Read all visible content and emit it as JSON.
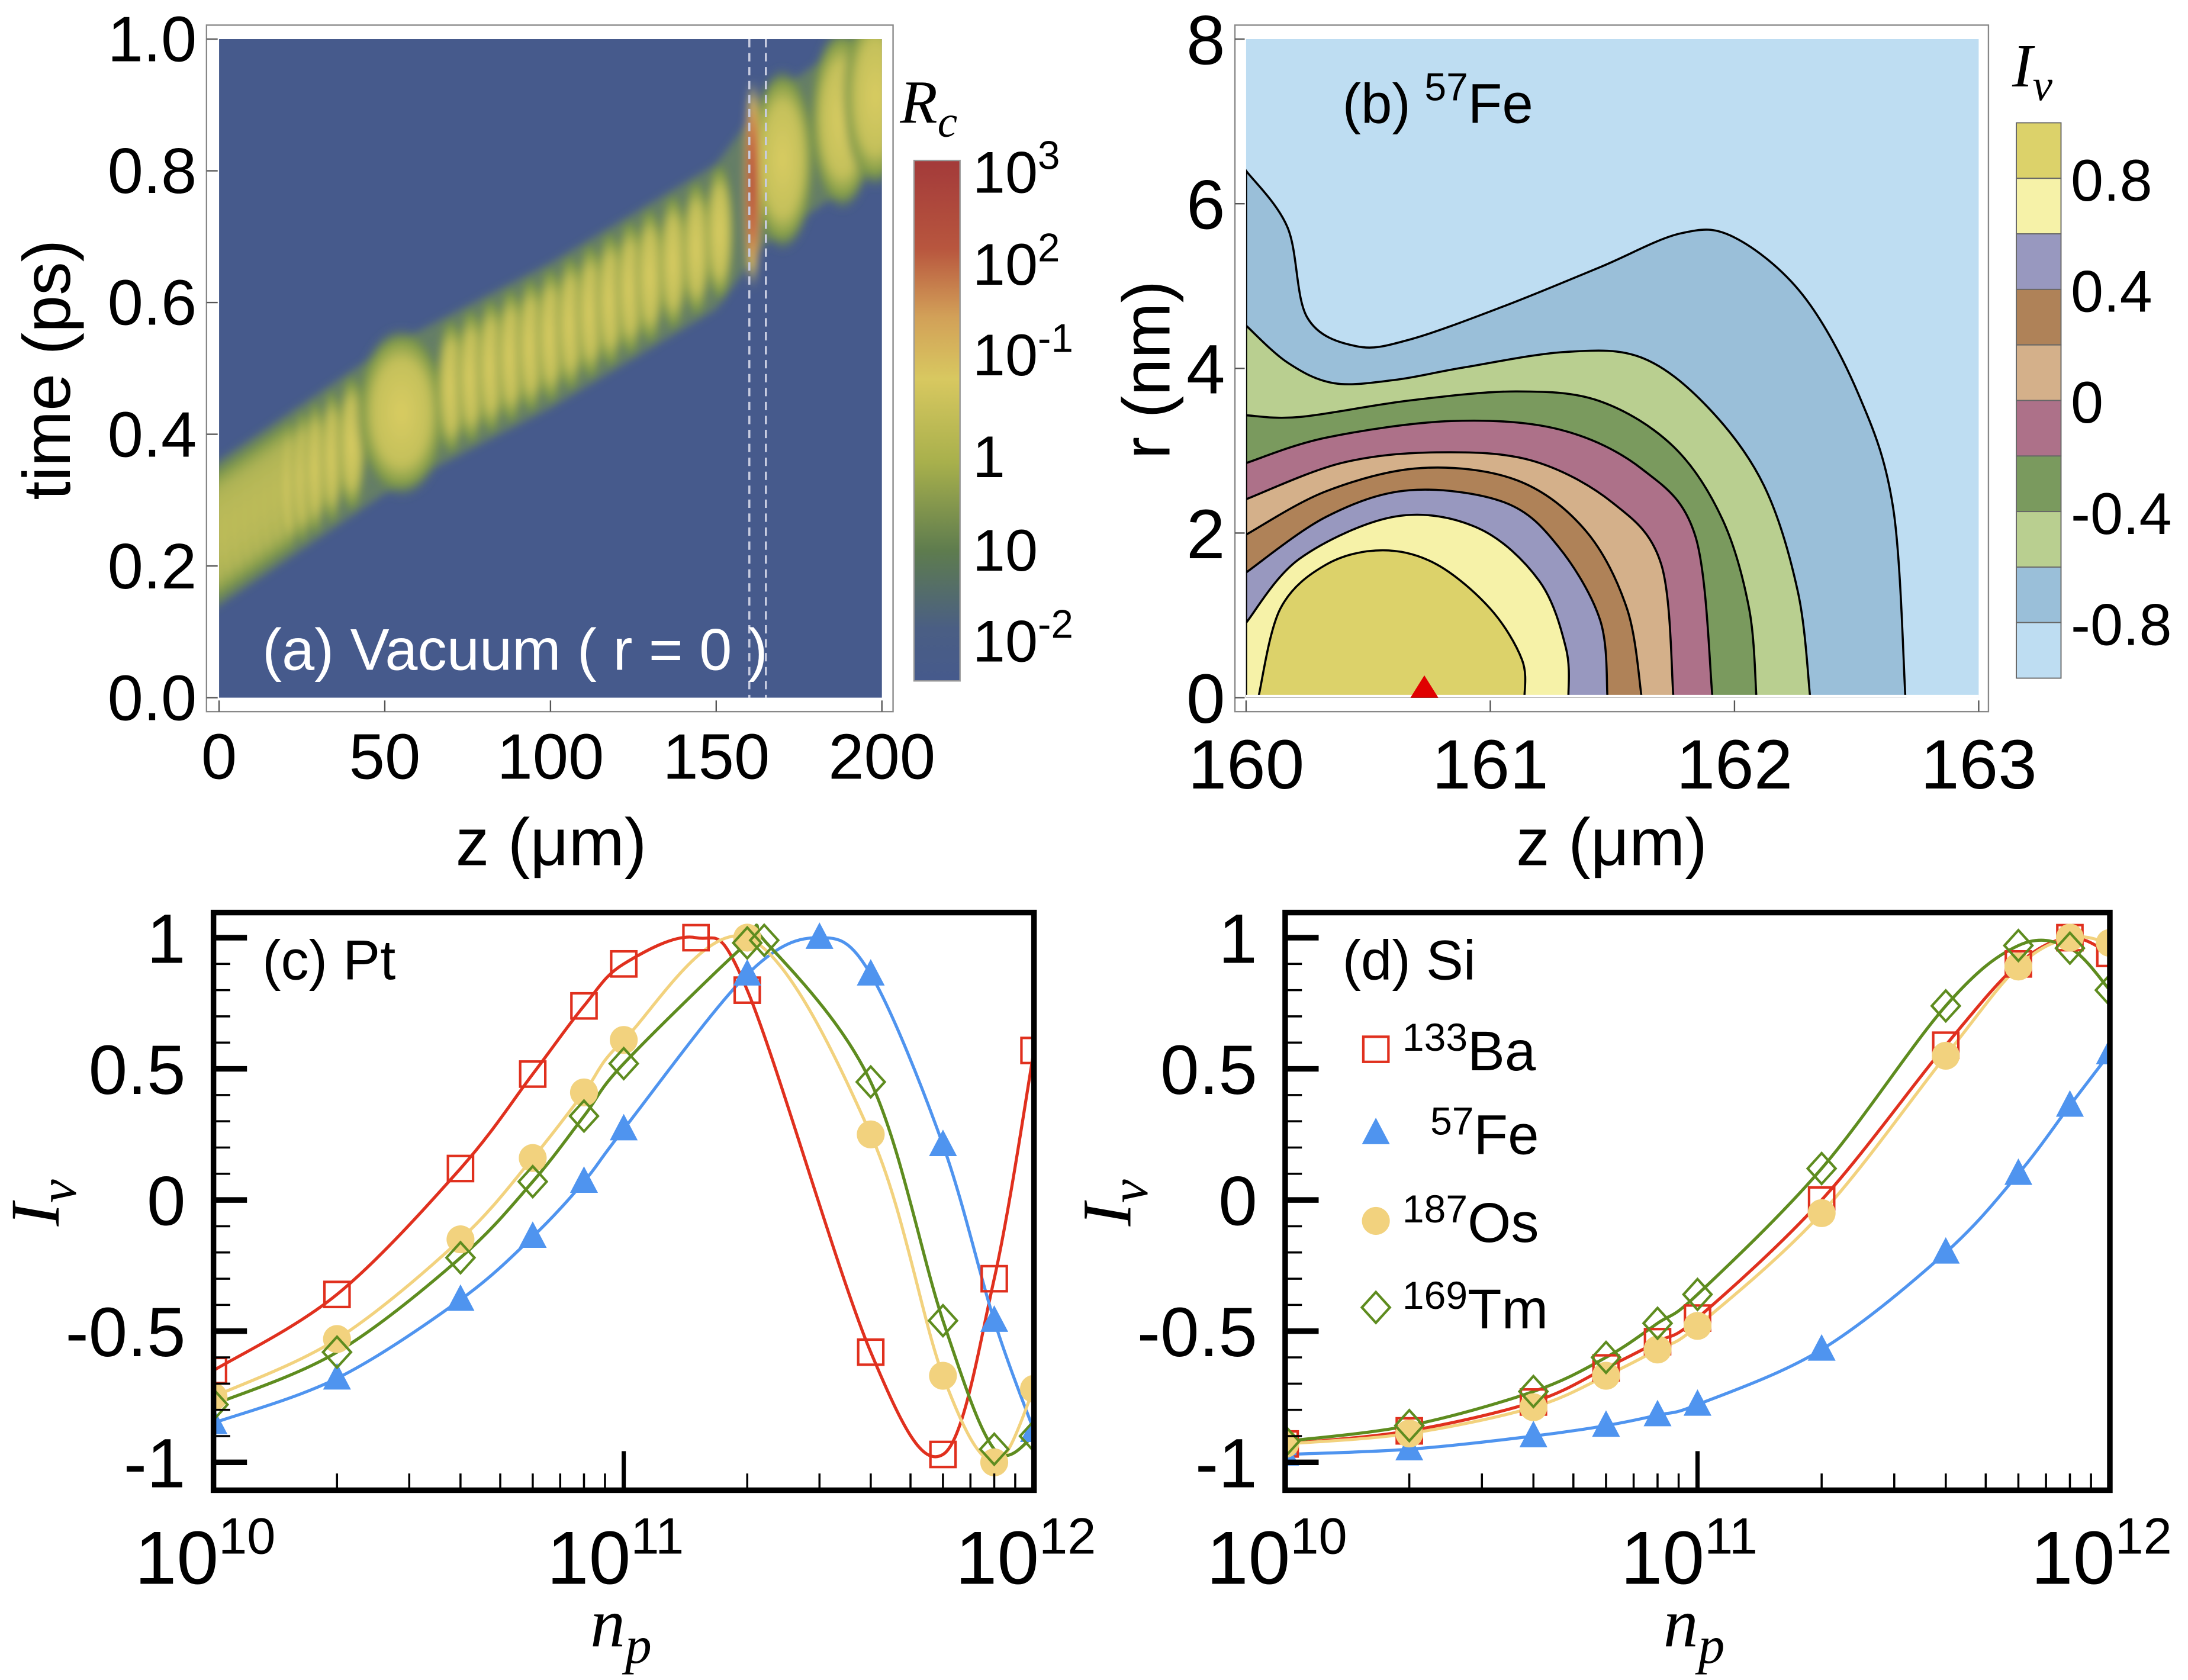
{
  "chart_data": [
    {
      "type": "heatmap",
      "panel": "(a) Vacuum ( r = 0 )",
      "title": "(a) Vacuum ( r = 0 )",
      "xlabel": "z (μm)",
      "ylabel": "time (ps)",
      "xlim": [
        0,
        200
      ],
      "ylim": [
        0.0,
        1.0
      ],
      "xticks": [
        "0",
        "50",
        "100",
        "150",
        "200"
      ],
      "yticks": [
        "0.0",
        "0.2",
        "0.4",
        "0.6",
        "0.8",
        "1.0"
      ],
      "colorbar_label": "R",
      "colorbar_label_sub": "c",
      "colorbar_ticks": [
        {
          "base": "10",
          "exp": "3"
        },
        {
          "base": "10",
          "exp": "2"
        },
        {
          "base": "10",
          "exp": "-1"
        },
        {
          "base": "1",
          "exp": ""
        },
        {
          "base": "10",
          "exp": ""
        },
        {
          "base": "10",
          "exp": "-2"
        }
      ],
      "ridge": {
        "z": [
          0,
          50,
          100,
          150,
          165,
          200
        ],
        "t": [
          0.25,
          0.42,
          0.55,
          0.7,
          0.8,
          0.92
        ]
      },
      "dashed_lines_z": [
        160,
        165
      ],
      "peak_region": {
        "z": 161,
        "t": [
          0.68,
          0.88
        ]
      },
      "colors": {
        "background": "#465A8C",
        "low": "#7E9A48",
        "mid": "#D8CB60",
        "high": "#A83838"
      }
    },
    {
      "type": "contour",
      "title": "(b)",
      "title_isotope_mass": "57",
      "title_isotope": "Fe",
      "xlabel": "z (μm)",
      "ylabel": "r (nm)",
      "xlim": [
        160,
        163
      ],
      "ylim": [
        0,
        8
      ],
      "xticks": [
        "160",
        "161",
        "162",
        "163"
      ],
      "yticks": [
        "0",
        "2",
        "4",
        "6",
        "8"
      ],
      "colorbar_label": "I",
      "colorbar_label_sub": "v",
      "colorbar_ticks": [
        "0.8",
        "0.4",
        "0",
        "-0.4",
        "-0.8"
      ],
      "level_colors": [
        "#DCD26A",
        "#F6F2A8",
        "#9898BF",
        "#AF8258",
        "#D4B08A",
        "#AD7189",
        "#7A9A5E",
        "#B9CF90",
        "#9ABFD9",
        "#BEDDF2"
      ],
      "contours": [
        {
          "fill": "#9ABFD9",
          "z": [
            160,
            160.17,
            160.25,
            160.45,
            160.67,
            161.06,
            161.45,
            161.78,
            162.0,
            162.28,
            162.51,
            162.65,
            162.7
          ],
          "r": [
            6.4,
            5.71,
            4.62,
            4.27,
            4.35,
            4.76,
            5.23,
            5.64,
            5.59,
            4.89,
            3.67,
            2.3,
            0
          ]
        },
        {
          "fill": "#B9CF90",
          "z": [
            160,
            160.17,
            160.36,
            160.61,
            160.89,
            161.31,
            161.62,
            161.89,
            162.12,
            162.26,
            162.31
          ],
          "r": [
            4.52,
            4.07,
            3.82,
            3.86,
            4.01,
            4.2,
            4.13,
            3.53,
            2.58,
            1.28,
            0
          ]
        },
        {
          "fill": "#7A9A5E",
          "z": [
            160,
            160.22,
            160.67,
            161.11,
            161.45,
            161.75,
            161.95,
            162.06,
            162.09
          ],
          "r": [
            3.43,
            3.41,
            3.61,
            3.72,
            3.6,
            3.05,
            2.17,
            1.08,
            0
          ]
        },
        {
          "fill": "#AD7189",
          "z": [
            160,
            160.33,
            160.84,
            161.28,
            161.62,
            161.84,
            161.91
          ],
          "r": [
            2.85,
            3.16,
            3.36,
            3.26,
            2.78,
            1.96,
            0
          ]
        },
        {
          "fill": "#D4B08A",
          "z": [
            160,
            160.39,
            160.78,
            161.17,
            161.5,
            161.7,
            161.75
          ],
          "r": [
            2.41,
            2.85,
            2.98,
            2.88,
            2.37,
            1.62,
            0
          ]
        },
        {
          "fill": "#AF8258",
          "z": [
            160,
            160.33,
            160.72,
            161.11,
            161.39,
            161.56,
            161.62
          ],
          "r": [
            1.98,
            2.51,
            2.79,
            2.64,
            2.03,
            1.08,
            0
          ]
        },
        {
          "fill": "#9898BF",
          "z": [
            160,
            160.33,
            160.67,
            161.06,
            161.28,
            161.45,
            161.48
          ],
          "r": [
            1.52,
            2.2,
            2.52,
            2.37,
            1.83,
            0.94,
            0
          ]
        },
        {
          "fill": "#F6F2A8",
          "z": [
            160,
            160.22,
            160.61,
            160.95,
            161.2,
            161.31,
            161.32
          ],
          "r": [
            0.91,
            1.69,
            2.2,
            2.06,
            1.42,
            0.6,
            0
          ]
        },
        {
          "fill": "#DCD26A",
          "z": [
            160.05,
            160.14,
            160.33,
            160.56,
            160.78,
            161.0,
            161.13,
            161.14
          ],
          "r": [
            0,
            1.08,
            1.62,
            1.79,
            1.62,
            1.08,
            0.46,
            0
          ]
        }
      ],
      "background": "#BEDDF2",
      "marker": {
        "z": 160.73,
        "r": 0,
        "color": "#E00000"
      }
    },
    {
      "type": "line",
      "title": "(c) Pt",
      "xlabel": "n",
      "xlabel_sub": "p",
      "ylabel": "I",
      "ylabel_sub": "v",
      "xscale": "log",
      "xlim": [
        10000000000.0,
        1000000000000.0
      ],
      "ylim": [
        -1.1,
        1.1
      ],
      "xticks": [
        {
          "base": "10",
          "exp": "10"
        },
        {
          "base": "10",
          "exp": "11"
        },
        {
          "base": "10",
          "exp": "12"
        }
      ],
      "yticks": [
        "1",
        "0.5",
        "0",
        "-0.5",
        "-1"
      ],
      "series": [
        {
          "name": "133Ba",
          "color": "#E0301E",
          "marker": "square-open",
          "x": [
            10000000000.0,
            20000000000.0,
            40000000000.0,
            60000000000.0,
            80000000000.0,
            100000000000.0,
            150000000000.0,
            200000000000.0,
            400000000000.0,
            600000000000.0,
            800000000000.0,
            1000000000000.0
          ],
          "y": [
            -0.65,
            -0.36,
            0.12,
            0.48,
            0.74,
            0.9,
            1.0,
            0.8,
            -0.58,
            -0.97,
            -0.3,
            0.57
          ]
        },
        {
          "name": "57Fe",
          "color": "#4F94EF",
          "marker": "triangle",
          "x": [
            10000000000.0,
            20000000000.0,
            40000000000.0,
            60000000000.0,
            80000000000.0,
            100000000000.0,
            200000000000.0,
            300000000000.0,
            400000000000.0,
            600000000000.0,
            800000000000.0,
            1000000000000.0
          ],
          "y": [
            -0.85,
            -0.68,
            -0.38,
            -0.14,
            0.07,
            0.27,
            0.86,
            1.0,
            0.86,
            0.21,
            -0.46,
            -0.88
          ]
        },
        {
          "name": "187Os",
          "color": "#F2D27E",
          "marker": "circle",
          "x": [
            10000000000.0,
            20000000000.0,
            40000000000.0,
            60000000000.0,
            80000000000.0,
            100000000000.0,
            200000000000.0,
            400000000000.0,
            600000000000.0,
            800000000000.0,
            1000000000000.0
          ],
          "y": [
            -0.75,
            -0.53,
            -0.15,
            0.16,
            0.41,
            0.61,
            1.0,
            0.25,
            -0.67,
            -1.0,
            -0.72
          ]
        },
        {
          "name": "169Tm",
          "color": "#5E8C1F",
          "marker": "diamond-open",
          "x": [
            10000000000.0,
            20000000000.0,
            40000000000.0,
            60000000000.0,
            80000000000.0,
            100000000000.0,
            200000000000.0,
            220000000000.0,
            400000000000.0,
            600000000000.0,
            800000000000.0,
            1000000000000.0
          ],
          "y": [
            -0.78,
            -0.58,
            -0.22,
            0.07,
            0.32,
            0.52,
            0.98,
            0.99,
            0.45,
            -0.46,
            -0.95,
            -0.9
          ]
        }
      ]
    },
    {
      "type": "line",
      "title": "(d) Si",
      "xlabel": "n",
      "xlabel_sub": "p",
      "ylabel": "I",
      "ylabel_sub": "v",
      "xscale": "log",
      "xlim": [
        10000000000.0,
        1000000000000.0
      ],
      "ylim": [
        -1.1,
        1.1
      ],
      "xticks": [
        {
          "base": "10",
          "exp": "10"
        },
        {
          "base": "10",
          "exp": "11"
        },
        {
          "base": "10",
          "exp": "12"
        }
      ],
      "yticks": [
        "1",
        "0.5",
        "0",
        "-0.5",
        "-1"
      ],
      "legend": {
        "placement": "upper-left",
        "entries": [
          {
            "mass": "133",
            "element": "Ba"
          },
          {
            "mass": "57",
            "element": "Fe"
          },
          {
            "mass": "187",
            "element": "Os"
          },
          {
            "mass": "169",
            "element": "Tm"
          }
        ]
      },
      "series": [
        {
          "name": "133Ba",
          "color": "#E0301E",
          "marker": "square-open",
          "x": [
            10000000000.0,
            20000000000.0,
            40000000000.0,
            60000000000.0,
            80000000000.0,
            100000000000.0,
            200000000000.0,
            400000000000.0,
            600000000000.0,
            800000000000.0,
            1000000000000.0
          ],
          "y": [
            -0.93,
            -0.88,
            -0.77,
            -0.64,
            -0.54,
            -0.45,
            0.0,
            0.59,
            0.9,
            1.0,
            0.94
          ]
        },
        {
          "name": "57Fe",
          "color": "#4F94EF",
          "marker": "triangle",
          "x": [
            10000000000.0,
            20000000000.0,
            40000000000.0,
            60000000000.0,
            80000000000.0,
            100000000000.0,
            200000000000.0,
            400000000000.0,
            600000000000.0,
            800000000000.0,
            1000000000000.0
          ],
          "y": [
            -0.97,
            -0.95,
            -0.9,
            -0.86,
            -0.82,
            -0.78,
            -0.57,
            -0.2,
            0.1,
            0.36,
            0.56
          ]
        },
        {
          "name": "187Os",
          "color": "#F2D27E",
          "marker": "circle",
          "x": [
            10000000000.0,
            20000000000.0,
            40000000000.0,
            60000000000.0,
            80000000000.0,
            100000000000.0,
            200000000000.0,
            400000000000.0,
            600000000000.0,
            800000000000.0,
            1000000000000.0
          ],
          "y": [
            -0.93,
            -0.89,
            -0.79,
            -0.67,
            -0.57,
            -0.48,
            -0.05,
            0.55,
            0.89,
            1.0,
            0.98
          ]
        },
        {
          "name": "169Tm",
          "color": "#5E8C1F",
          "marker": "diamond-open",
          "x": [
            10000000000.0,
            20000000000.0,
            40000000000.0,
            60000000000.0,
            80000000000.0,
            100000000000.0,
            200000000000.0,
            400000000000.0,
            600000000000.0,
            800000000000.0,
            1000000000000.0
          ],
          "y": [
            -0.92,
            -0.86,
            -0.73,
            -0.6,
            -0.47,
            -0.36,
            0.12,
            0.74,
            0.97,
            0.96,
            0.8
          ]
        }
      ]
    }
  ]
}
